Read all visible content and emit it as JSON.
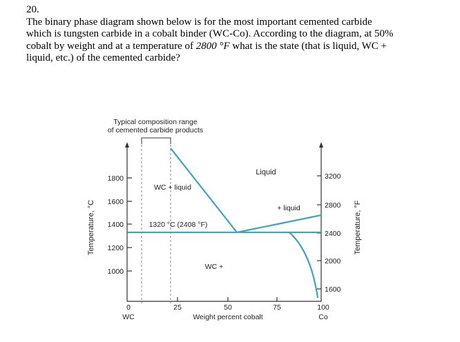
{
  "question": {
    "number": "20.",
    "line1": "The binary phase diagram shown below is for the most important cemented carbide",
    "line2": "which is tungsten carbide in a cobalt binder (WC-Co).  According to the diagram, at 50%",
    "line3_pre": "cobalt by weight and at a temperature of ",
    "line3_temp": "2800 °F",
    "line3_post": " what is the state (that is liquid, WC +",
    "line4": "liquid, etc.) of the cemented carbide?"
  },
  "diagram": {
    "range_label_line1": "Typical composition range",
    "range_label_line2": "of cemented carbide products",
    "left_axis_title": "Temperature, °C",
    "right_axis_title": "Temperature, °F",
    "x_axis_title": "Weight percent cobalt",
    "left_ticks": [
      "1800",
      "1600",
      "1400",
      "1200",
      "1000"
    ],
    "right_ticks": [
      "3200",
      "2800",
      "2400",
      "2000",
      "1600"
    ],
    "x_ticks": [
      "0",
      "25",
      "50",
      "75",
      "100"
    ],
    "x_end_left": "WC",
    "x_end_right": "Co",
    "regions": {
      "liquid": "Liquid",
      "wc_liquid": "WC + liquid",
      "plus_liquid": "+ liquid",
      "eutectic": "1320 °C (2408 °F)",
      "wc_plus": "WC +"
    },
    "colors": {
      "line": "#3aa5bd",
      "axis": "#333333"
    }
  }
}
